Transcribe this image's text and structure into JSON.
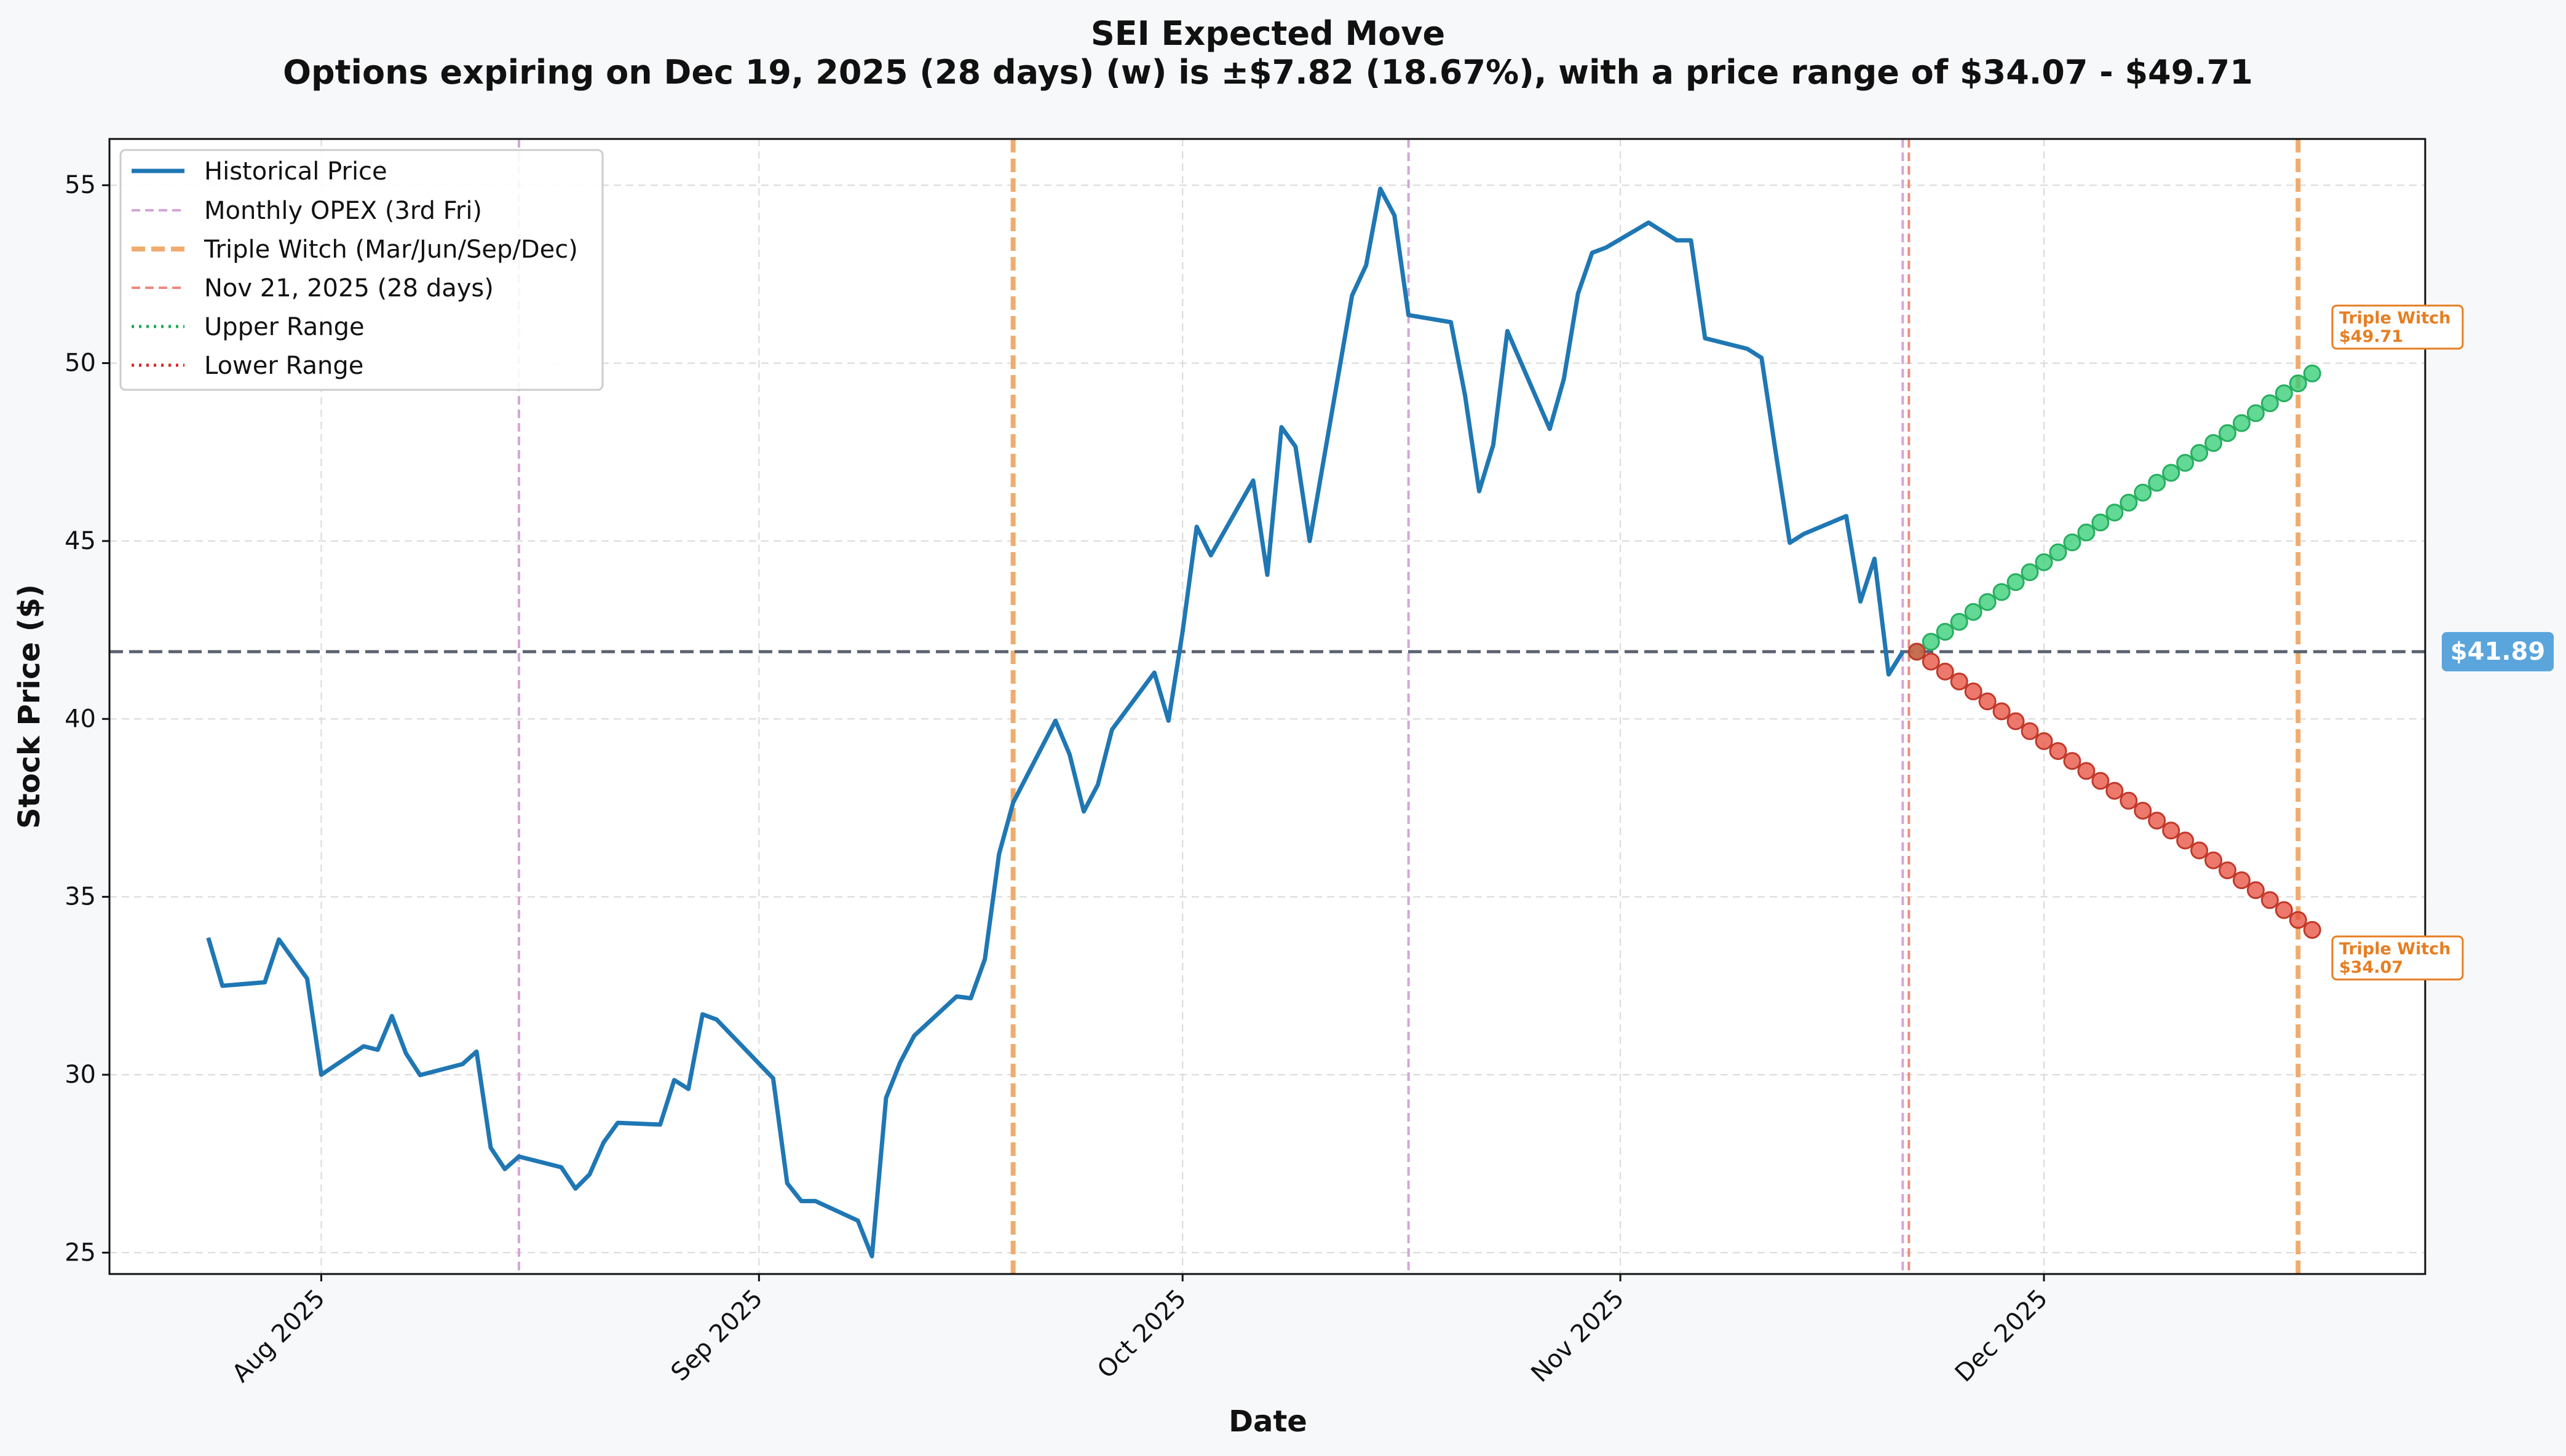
{
  "chart_data": {
    "type": "line",
    "title": "SEI Expected Move",
    "subtitle": "Options expiring on Dec 19, 2025 (28 days) (w) is ±$7.82 (18.67%), with a price range of $34.07 - $49.71",
    "xlabel": "Date",
    "ylabel": "Stock Price ($)",
    "ylim": [
      24.4,
      56.3
    ],
    "yticks": [
      25,
      30,
      35,
      40,
      45,
      50,
      55
    ],
    "xlim": [
      "2025-07-17",
      "2025-12-28"
    ],
    "xticks": [
      {
        "date": "2025-08-01",
        "label": "Aug 2025"
      },
      {
        "date": "2025-09-01",
        "label": "Sep 2025"
      },
      {
        "date": "2025-10-01",
        "label": "Oct 2025"
      },
      {
        "date": "2025-11-01",
        "label": "Nov 2025"
      },
      {
        "date": "2025-12-01",
        "label": "Dec 2025"
      }
    ],
    "grid": true,
    "legend_position": "top-left",
    "legend": [
      {
        "label": "Historical Price",
        "style": "solid",
        "color": "#1f77b4"
      },
      {
        "label": "Monthly OPEX (3rd Fri)",
        "style": "dashed",
        "color": "#d4a6d8"
      },
      {
        "label": "Triple Witch (Mar/Jun/Sep/Dec)",
        "style": "dashed-thick",
        "color": "#f0ac6e"
      },
      {
        "label": "Nov 21, 2025 (28 days)",
        "style": "dashed",
        "color": "#ef8a80"
      },
      {
        "label": "Upper Range",
        "style": "dotted",
        "color": "#1aaa55"
      },
      {
        "label": "Lower Range",
        "style": "dotted",
        "color": "#d62728"
      }
    ],
    "current_price": 41.89,
    "current_price_label": "$41.89",
    "upper_target": 49.71,
    "lower_target": 34.07,
    "annotations": [
      {
        "title": "Triple Witch",
        "value": "$49.71"
      },
      {
        "title": "Triple Witch",
        "value": "$34.07"
      }
    ],
    "vlines": [
      {
        "date": "2025-08-15",
        "kind": "monthly_opex",
        "color": "#d4a6d8"
      },
      {
        "date": "2025-09-19",
        "kind": "triple_witch",
        "color": "#f0ac6e"
      },
      {
        "date": "2025-10-17",
        "kind": "monthly_opex",
        "color": "#d4a6d8"
      },
      {
        "date": "2025-11-21",
        "kind": "monthly_opex",
        "color": "#d4a6d8"
      },
      {
        "date": "2025-11-21",
        "kind": "today",
        "color": "#ef8a80"
      },
      {
        "date": "2025-12-19",
        "kind": "triple_witch",
        "color": "#f0ac6e"
      }
    ],
    "projection": {
      "start_date": "2025-11-22",
      "end_date": "2025-12-20",
      "start_price": 41.89,
      "upper_end": 49.71,
      "lower_end": 34.07,
      "steps": 29
    },
    "series": [
      {
        "name": "Historical Price",
        "color": "#1f77b4",
        "points": [
          [
            "2025-07-24",
            33.85
          ],
          [
            "2025-07-25",
            32.5
          ],
          [
            "2025-07-28",
            32.6
          ],
          [
            "2025-07-29",
            33.8
          ],
          [
            "2025-07-31",
            32.7
          ],
          [
            "2025-08-01",
            30.0
          ],
          [
            "2025-08-04",
            30.8
          ],
          [
            "2025-08-05",
            30.7
          ],
          [
            "2025-08-06",
            31.65
          ],
          [
            "2025-08-07",
            30.6
          ],
          [
            "2025-08-08",
            29.99
          ],
          [
            "2025-08-11",
            30.3
          ],
          [
            "2025-08-12",
            30.65
          ],
          [
            "2025-08-13",
            27.95
          ],
          [
            "2025-08-14",
            27.35
          ],
          [
            "2025-08-15",
            27.7
          ],
          [
            "2025-08-18",
            27.4
          ],
          [
            "2025-08-19",
            26.8
          ],
          [
            "2025-08-20",
            27.2
          ],
          [
            "2025-08-21",
            28.1
          ],
          [
            "2025-08-22",
            28.65
          ],
          [
            "2025-08-25",
            28.6
          ],
          [
            "2025-08-26",
            29.85
          ],
          [
            "2025-08-27",
            29.6
          ],
          [
            "2025-08-28",
            31.7
          ],
          [
            "2025-08-29",
            31.55
          ],
          [
            "2025-09-02",
            29.9
          ],
          [
            "2025-09-03",
            26.95
          ],
          [
            "2025-09-04",
            26.45
          ],
          [
            "2025-09-05",
            26.45
          ],
          [
            "2025-09-08",
            25.9
          ],
          [
            "2025-09-09",
            24.9
          ],
          [
            "2025-09-10",
            29.35
          ],
          [
            "2025-09-11",
            30.35
          ],
          [
            "2025-09-12",
            31.1
          ],
          [
            "2025-09-15",
            32.2
          ],
          [
            "2025-09-16",
            32.15
          ],
          [
            "2025-09-17",
            33.25
          ],
          [
            "2025-09-18",
            36.2
          ],
          [
            "2025-09-19",
            37.65
          ],
          [
            "2025-09-22",
            39.95
          ],
          [
            "2025-09-23",
            39.0
          ],
          [
            "2025-09-24",
            37.4
          ],
          [
            "2025-09-25",
            38.15
          ],
          [
            "2025-09-26",
            39.7
          ],
          [
            "2025-09-29",
            41.3
          ],
          [
            "2025-09-30",
            39.95
          ],
          [
            "2025-10-01",
            42.45
          ],
          [
            "2025-10-02",
            45.4
          ],
          [
            "2025-10-03",
            44.6
          ],
          [
            "2025-10-06",
            46.7
          ],
          [
            "2025-10-07",
            44.05
          ],
          [
            "2025-10-08",
            48.2
          ],
          [
            "2025-10-09",
            47.65
          ],
          [
            "2025-10-10",
            45.0
          ],
          [
            "2025-10-13",
            51.9
          ],
          [
            "2025-10-14",
            52.75
          ],
          [
            "2025-10-15",
            54.9
          ],
          [
            "2025-10-16",
            54.15
          ],
          [
            "2025-10-17",
            51.35
          ],
          [
            "2025-10-20",
            51.15
          ],
          [
            "2025-10-21",
            49.1
          ],
          [
            "2025-10-22",
            46.4
          ],
          [
            "2025-10-23",
            47.7
          ],
          [
            "2025-10-24",
            50.9
          ],
          [
            "2025-10-27",
            48.15
          ],
          [
            "2025-10-28",
            49.55
          ],
          [
            "2025-10-29",
            51.95
          ],
          [
            "2025-10-30",
            53.1
          ],
          [
            "2025-10-31",
            53.25
          ],
          [
            "2025-11-03",
            53.95
          ],
          [
            "2025-11-05",
            53.45
          ],
          [
            "2025-11-06",
            53.45
          ],
          [
            "2025-11-07",
            50.7
          ],
          [
            "2025-11-10",
            50.4
          ],
          [
            "2025-11-11",
            50.15
          ],
          [
            "2025-11-12",
            47.5
          ],
          [
            "2025-11-13",
            44.95
          ],
          [
            "2025-11-14",
            45.2
          ],
          [
            "2025-11-17",
            45.7
          ],
          [
            "2025-11-18",
            43.3
          ],
          [
            "2025-11-19",
            44.5
          ],
          [
            "2025-11-20",
            41.25
          ],
          [
            "2025-11-21",
            41.89
          ]
        ]
      }
    ]
  }
}
